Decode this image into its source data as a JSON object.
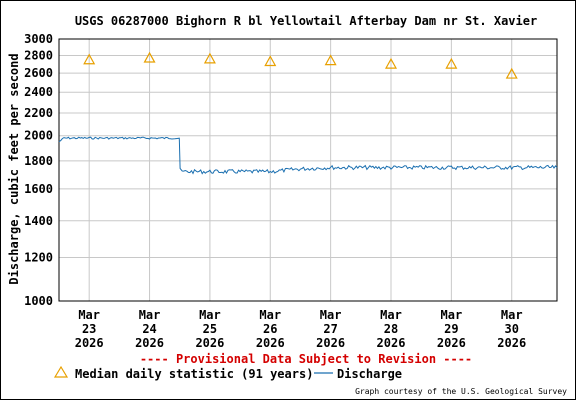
{
  "chart_data": {
    "type": "line",
    "title": "USGS 06287000 Bighorn R bl Yellowtail Afterbay Dam nr St. Xavier",
    "ylabel": "Discharge, cubic feet per second",
    "y_scale": "log",
    "ylim": [
      1000,
      3000
    ],
    "y_ticks": [
      1000,
      1200,
      1400,
      1600,
      1800,
      2000,
      2200,
      2400,
      2600,
      2800,
      3000
    ],
    "x_ticks": [
      {
        "date": "2026-03-23",
        "label": [
          "Mar",
          "23",
          "2026"
        ]
      },
      {
        "date": "2026-03-24",
        "label": [
          "Mar",
          "24",
          "2026"
        ]
      },
      {
        "date": "2026-03-25",
        "label": [
          "Mar",
          "25",
          "2026"
        ]
      },
      {
        "date": "2026-03-26",
        "label": [
          "Mar",
          "26",
          "2026"
        ]
      },
      {
        "date": "2026-03-27",
        "label": [
          "Mar",
          "27",
          "2026"
        ]
      },
      {
        "date": "2026-03-28",
        "label": [
          "Mar",
          "28",
          "2026"
        ]
      },
      {
        "date": "2026-03-29",
        "label": [
          "Mar",
          "29",
          "2026"
        ]
      },
      {
        "date": "2026-03-30",
        "label": [
          "Mar",
          "30",
          "2026"
        ]
      }
    ],
    "xlim": [
      "2026-03-22T12:00",
      "2026-03-30T18:00"
    ],
    "grid": true,
    "series": [
      {
        "name": "Median daily statistic (91 years)",
        "style": "triangle-marker",
        "color": "#e8a000",
        "x": [
          "2026-03-23T00:00",
          "2026-03-24T00:00",
          "2026-03-25T00:00",
          "2026-03-26T00:00",
          "2026-03-27T00:00",
          "2026-03-28T00:00",
          "2026-03-29T00:00",
          "2026-03-30T00:00"
        ],
        "values": [
          2750,
          2770,
          2760,
          2730,
          2740,
          2700,
          2700,
          2590
        ]
      },
      {
        "name": "Discharge",
        "style": "line",
        "color": "#1a6fb0",
        "x": [
          "2026-03-22T12:00",
          "2026-03-22T14:00",
          "2026-03-23T00:00",
          "2026-03-24T00:00",
          "2026-03-24T11:50",
          "2026-03-24T12:10",
          "2026-03-24T13:00",
          "2026-03-25T00:00",
          "2026-03-25T12:00",
          "2026-03-26T00:00",
          "2026-03-26T12:00",
          "2026-03-27T00:00",
          "2026-03-28T00:00",
          "2026-03-29T00:00",
          "2026-03-30T00:00",
          "2026-03-30T18:00"
        ],
        "values": [
          1950,
          1980,
          1980,
          1980,
          1980,
          1730,
          1720,
          1720,
          1720,
          1720,
          1740,
          1750,
          1750,
          1750,
          1750,
          1750
        ]
      }
    ]
  },
  "provisional_note": "---- Provisional Data Subject to Revision ----",
  "legend": {
    "median_label": "Median daily statistic (91 years)",
    "discharge_label": "Discharge"
  },
  "credit": "Graph courtesy of the U.S. Geological Survey",
  "colors": {
    "median": "#e8a000",
    "discharge": "#1a6fb0",
    "provisional": "#d40000",
    "grid": "#c8c8c8"
  }
}
